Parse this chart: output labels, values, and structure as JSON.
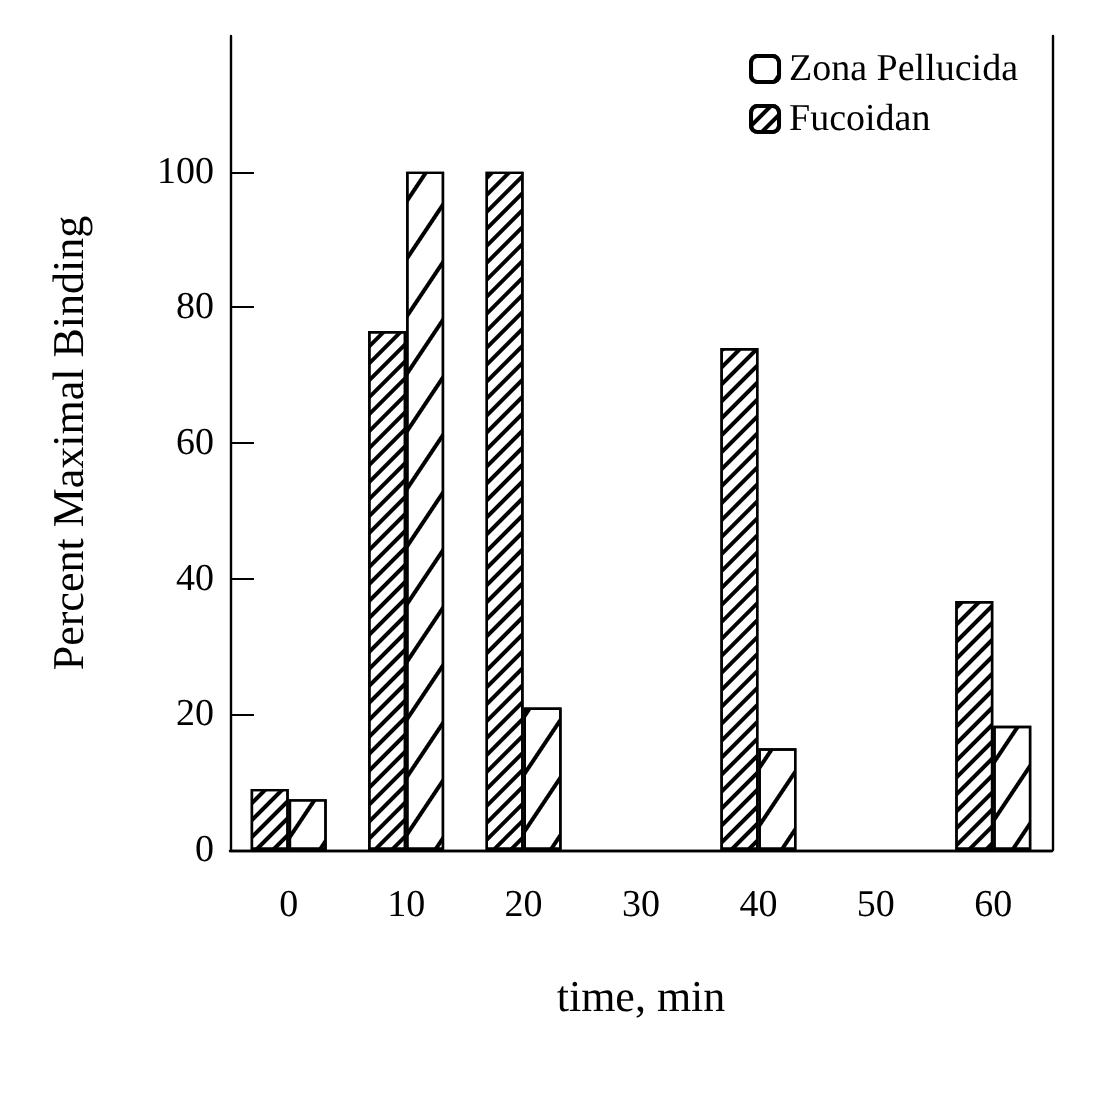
{
  "chart_data": {
    "type": "bar",
    "xlabel": "time, min",
    "ylabel": "Percent Maximal Binding",
    "categories": [
      "0",
      "10",
      "20",
      "30",
      "40",
      "50",
      "60"
    ],
    "series": [
      {
        "name": "Fucoidan",
        "color": "#ffffff",
        "values": [
          9,
          76.5,
          100,
          null,
          74,
          null,
          36.7
        ]
      },
      {
        "name": "Zona Pellucida",
        "color": "#ffffff",
        "values": [
          7.5,
          100,
          21,
          null,
          15,
          null,
          18.3
        ]
      }
    ],
    "ylim": [
      0,
      120
    ],
    "yticks": [
      0,
      20,
      40,
      60,
      80,
      100
    ],
    "grid": false,
    "legend": "top right"
  }
}
